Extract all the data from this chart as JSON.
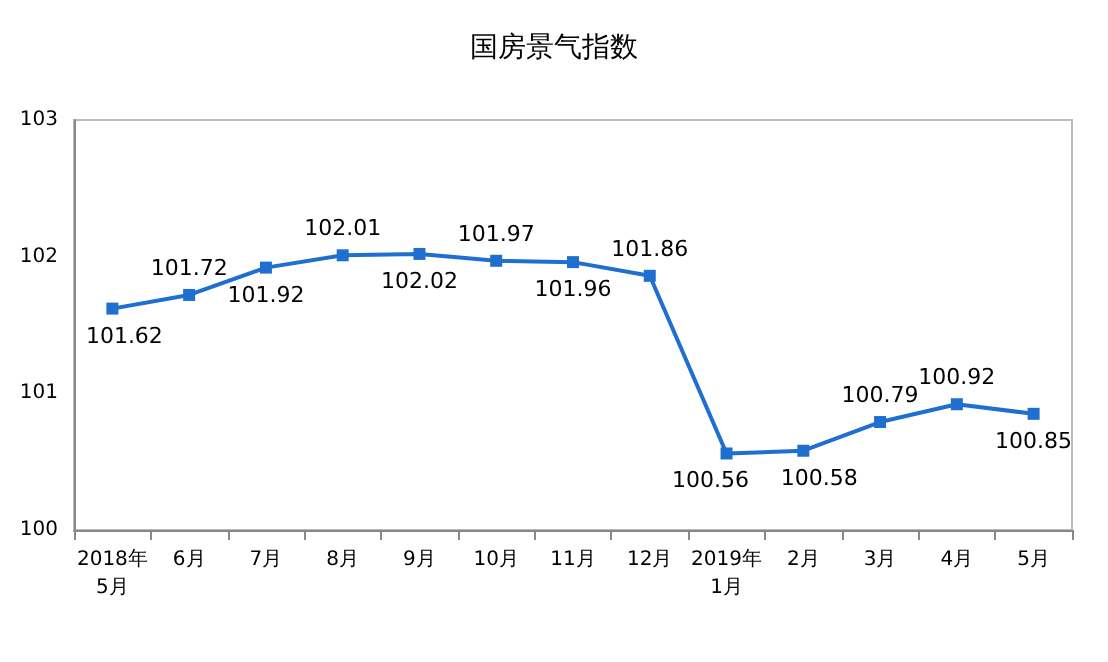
{
  "chart_data": {
    "type": "line",
    "title": "国房景气指数",
    "categories": [
      "2018年\n5月",
      "6月",
      "7月",
      "8月",
      "9月",
      "10月",
      "11月",
      "12月",
      "2019年\n1月",
      "2月",
      "3月",
      "4月",
      "5月"
    ],
    "series": [
      {
        "color": "#1e6fd0",
        "values": [
          101.62,
          101.72,
          101.92,
          102.01,
          102.02,
          101.97,
          101.96,
          101.86,
          100.56,
          100.58,
          100.79,
          100.92,
          100.85
        ]
      }
    ],
    "ylim": [
      100,
      103
    ],
    "yticks": [
      100,
      101,
      102,
      103
    ],
    "grid": false,
    "marker": "square",
    "line_style": "solid",
    "data_labels": true
  }
}
